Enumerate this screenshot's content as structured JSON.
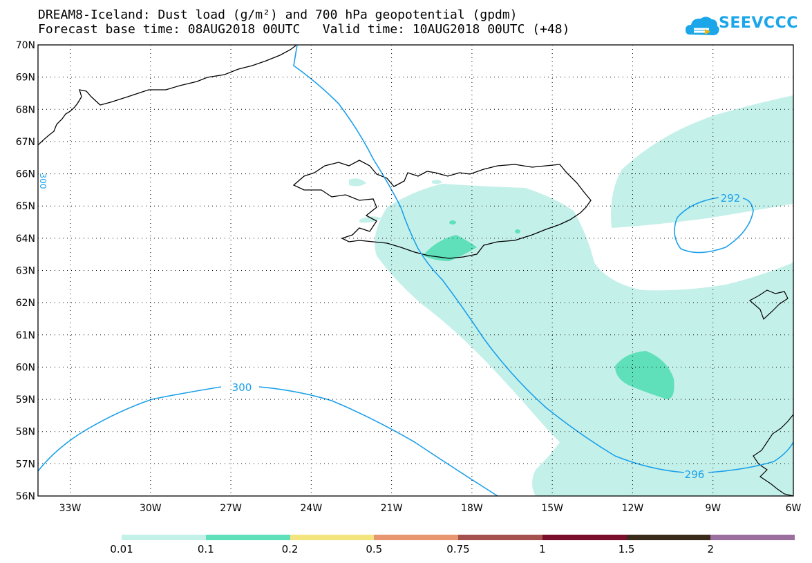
{
  "header": {
    "title_line1": "DREAM8-Iceland: Dust load (g/m²) and 700 hPa geopotential (gpdm)",
    "title_line2": "Forecast base time: 08AUG2018 00UTC   Valid time: 10AUG2018 00UTC (+48)"
  },
  "logo": {
    "text": "SEEVCCC",
    "icon": "cloud-logo-icon",
    "color": "#1aa6e8"
  },
  "map": {
    "lat_labels": [
      "70N",
      "69N",
      "68N",
      "67N",
      "66N",
      "65N",
      "64N",
      "63N",
      "62N",
      "61N",
      "60N",
      "59N",
      "58N",
      "57N",
      "56N"
    ],
    "lon_labels": [
      "33W",
      "30W",
      "27W",
      "24W",
      "21W",
      "18W",
      "15W",
      "12W",
      "9W",
      "6W"
    ],
    "contour_color": "#1aa0ea",
    "contour_labels": [
      "292",
      "296",
      "300",
      "300"
    ]
  },
  "colorbar": {
    "labels": [
      "0.01",
      "0.1",
      "0.2",
      "0.5",
      "0.75",
      "1",
      "1.5",
      "2"
    ],
    "colors": [
      "#c4f0ea",
      "#5fe0bb",
      "#f4e47e",
      "#e8966f",
      "#a5524e",
      "#7a0f2b",
      "#3a2a1a",
      "#9a6fa0"
    ]
  }
}
